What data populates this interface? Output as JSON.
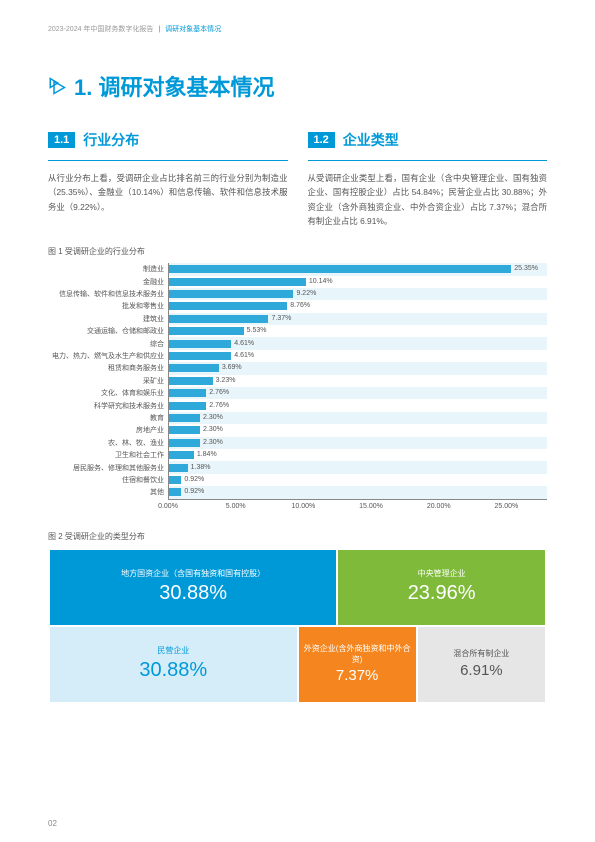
{
  "header": {
    "crumb1": "2023-2024 年中国财务数字化报告",
    "crumb2": "调研对象基本情况"
  },
  "main_title": "1. 调研对象基本情况",
  "section1": {
    "num": "1.1",
    "title": "行业分布",
    "body": "从行业分布上看，受调研企业占比排名前三的行业分别为制造业（25.35%）、金融业（10.14%）和信息传输、软件和信息技术服务业（9.22%）。"
  },
  "section2": {
    "num": "1.2",
    "title": "企业类型",
    "body": "从受调研企业类型上看，国有企业（含中央管理企业、国有独资企业、国有控股企业）占比 54.84%；民营企业占比 30.88%；外资企业（含外商独资企业、中外合资企业）占比 7.37%；混合所有制企业占比 6.91%。"
  },
  "fig1": {
    "label": "图 1 受调研企业的行业分布",
    "bar_color": "#2ea9d9",
    "stripe_even": "#e8f5fb",
    "stripe_odd": "#ffffff",
    "xmax": 28,
    "ticks": [
      "0.00%",
      "5.00%",
      "10.00%",
      "15.00%",
      "20.00%",
      "25.00%"
    ],
    "tick_values": [
      0,
      5,
      10,
      15,
      20,
      25
    ],
    "rows": [
      {
        "label": "制造业",
        "value": 25.35,
        "display": "25.35%"
      },
      {
        "label": "金融业",
        "value": 10.14,
        "display": "10.14%"
      },
      {
        "label": "信息传输、软件和信息技术服务业",
        "value": 9.22,
        "display": "9.22%"
      },
      {
        "label": "批发和零售业",
        "value": 8.76,
        "display": "8.76%"
      },
      {
        "label": "建筑业",
        "value": 7.37,
        "display": "7.37%"
      },
      {
        "label": "交通运输、仓储和邮政业",
        "value": 5.53,
        "display": "5.53%"
      },
      {
        "label": "综合",
        "value": 4.61,
        "display": "4.61%"
      },
      {
        "label": "电力、热力、燃气及水生产和供应业",
        "value": 4.61,
        "display": "4.61%"
      },
      {
        "label": "租赁和商务服务业",
        "value": 3.69,
        "display": "3.69%"
      },
      {
        "label": "采矿业",
        "value": 3.23,
        "display": "3.23%"
      },
      {
        "label": "文化、体育和娱乐业",
        "value": 2.76,
        "display": "2.76%"
      },
      {
        "label": "科学研究和技术服务业",
        "value": 2.76,
        "display": "2.76%"
      },
      {
        "label": "教育",
        "value": 2.3,
        "display": "2.30%"
      },
      {
        "label": "房地产业",
        "value": 2.3,
        "display": "2.30%"
      },
      {
        "label": "农、林、牧、渔业",
        "value": 2.3,
        "display": "2.30%"
      },
      {
        "label": "卫生和社会工作",
        "value": 1.84,
        "display": "1.84%"
      },
      {
        "label": "居民服务、修理和其他服务业",
        "value": 1.38,
        "display": "1.38%"
      },
      {
        "label": "住宿和餐饮业",
        "value": 0.92,
        "display": "0.92%"
      },
      {
        "label": "其他",
        "value": 0.92,
        "display": "0.92%"
      }
    ]
  },
  "fig2": {
    "label": "图 2 受调研企业的类型分布",
    "cells": [
      {
        "label": "地方国资企业（含国有独资和国有控股）",
        "value": "30.88%",
        "bg": "#0099d8",
        "fg": "#ffffff",
        "w": 58,
        "row": 0
      },
      {
        "label": "中央管理企业",
        "value": "23.96%",
        "bg": "#7fba3a",
        "fg": "#ffffff",
        "w": 42,
        "row": 0
      },
      {
        "label": "民营企业",
        "value": "30.88%",
        "bg": "#d4edf8",
        "fg": "#0099d8",
        "w": 50,
        "row": 1
      },
      {
        "label": "外资企业(含外商独资和中外合资)",
        "value": "7.37%",
        "bg": "#f5861f",
        "fg": "#ffffff",
        "w": 24,
        "row": 1,
        "sm": true
      },
      {
        "label": "混合所有制企业",
        "value": "6.91%",
        "bg": "#e6e6e6",
        "fg": "#555555",
        "w": 26,
        "row": 1,
        "sm": true
      }
    ]
  },
  "page_number": "02"
}
